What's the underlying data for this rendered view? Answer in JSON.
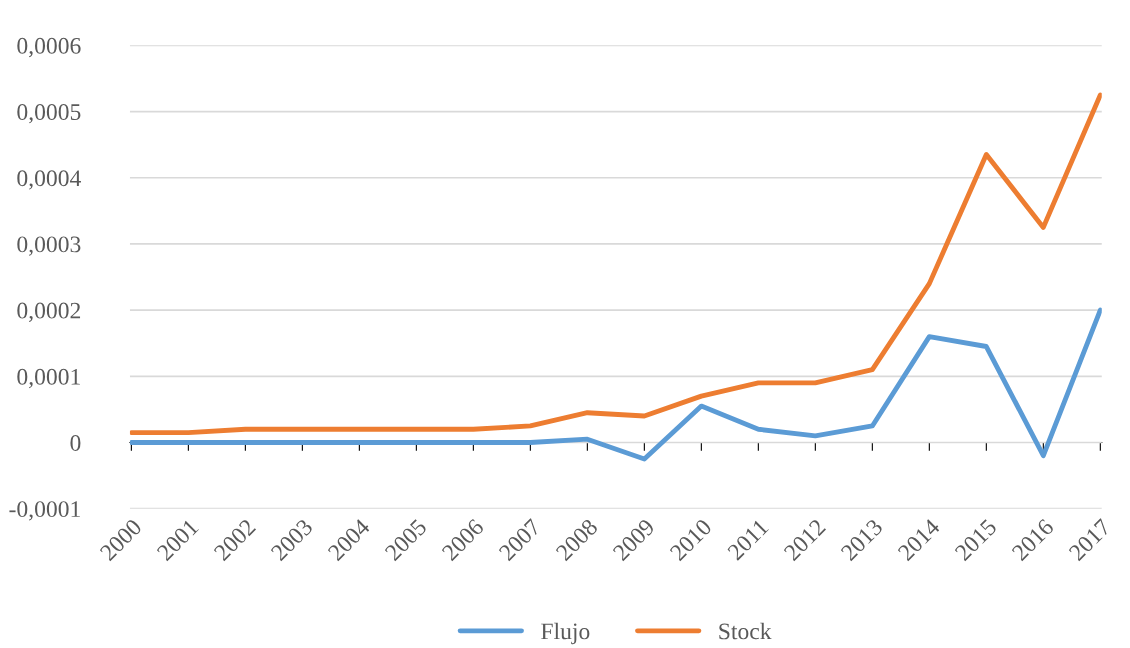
{
  "chart_data": {
    "type": "line",
    "categories": [
      "2000",
      "2001",
      "2002",
      "2003",
      "2004",
      "2005",
      "2006",
      "2007",
      "2008",
      "2009",
      "2010",
      "2011",
      "2012",
      "2013",
      "2014",
      "2015",
      "2016",
      "2017"
    ],
    "series": [
      {
        "name": "Flujo",
        "color": "#5b9bd5",
        "values": [
          0,
          0,
          0,
          0,
          0,
          0,
          0,
          0,
          5e-06,
          -2.5e-05,
          5.5e-05,
          2e-05,
          1e-05,
          2.5e-05,
          0.00016,
          0.000145,
          -2e-05,
          0.0002
        ]
      },
      {
        "name": "Stock",
        "color": "#ed7d31",
        "values": [
          1.5e-05,
          1.5e-05,
          2e-05,
          2e-05,
          2e-05,
          2e-05,
          2e-05,
          2.5e-05,
          4.5e-05,
          4e-05,
          7e-05,
          9e-05,
          9e-05,
          0.00011,
          0.00024,
          0.000435,
          0.000325,
          0.000525
        ]
      }
    ],
    "ylim": [
      -0.0001,
      0.0006
    ],
    "yticks": [
      {
        "value": -0.0001,
        "label": "-0,0001"
      },
      0,
      {
        "value": 0.0001,
        "label": "0,0001"
      },
      {
        "value": 0.0002,
        "label": "0,0002"
      },
      {
        "value": 0.0003,
        "label": "0,0003"
      },
      {
        "value": 0.0004,
        "label": "0,0004"
      },
      {
        "value": 0.0005,
        "label": "0,0005"
      },
      {
        "value": 0.0006,
        "label": "0,0006"
      }
    ],
    "grid": "y",
    "legend": "bottom",
    "marker": "none",
    "line_style": "solid"
  }
}
